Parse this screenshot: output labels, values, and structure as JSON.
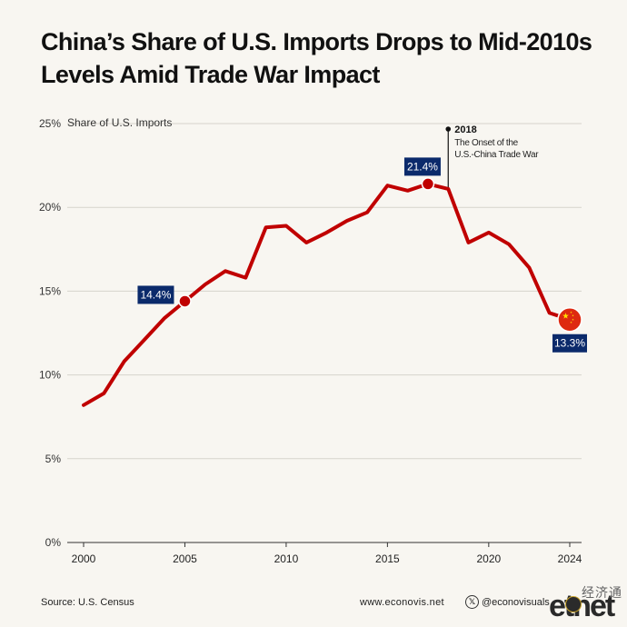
{
  "title": "China’s Share of U.S. Imports Drops to Mid-2010s Levels Amid Trade War Impact",
  "footer": {
    "source": "Source: U.S. Census",
    "website": "www.econovis.net",
    "social": "@econovisuals",
    "social_icon": "x-logo-icon"
  },
  "watermark": {
    "cn": "经济通",
    "en": "etnet"
  },
  "colors": {
    "line": "#c00000",
    "label_bg": "#0b2a6b",
    "flag_red": "#de2910",
    "flag_star": "#ffde00"
  },
  "chart_data": {
    "type": "line",
    "title": "China’s Share of U.S. Imports Drops to Mid-2010s Levels Amid Trade War Impact",
    "ylabel": "Share of U.S. Imports",
    "xlabel": "",
    "ylim": [
      0,
      25
    ],
    "xlim": [
      2000,
      2024
    ],
    "yticks": [
      0,
      5,
      10,
      15,
      20,
      25
    ],
    "ytick_labels": [
      "0%",
      "5%",
      "10%",
      "15%",
      "20%",
      "25%"
    ],
    "xticks": [
      2000,
      2005,
      2010,
      2015,
      2020,
      2024
    ],
    "xtick_labels": [
      "2000",
      "2005",
      "2010",
      "2015",
      "2020",
      "2024"
    ],
    "grid": true,
    "series": [
      {
        "x": [
          2000,
          2001,
          2002,
          2003,
          2004,
          2005,
          2006,
          2007,
          2008,
          2009,
          2010,
          2011,
          2012,
          2013,
          2014,
          2015,
          2016,
          2017,
          2018,
          2019,
          2020,
          2021,
          2022,
          2023,
          2024
        ],
        "values": [
          8.2,
          8.9,
          10.8,
          12.1,
          13.4,
          14.4,
          15.4,
          16.2,
          15.8,
          18.8,
          18.9,
          17.9,
          18.5,
          19.2,
          19.7,
          21.3,
          21.0,
          21.4,
          21.1,
          17.9,
          18.5,
          17.8,
          16.4,
          13.7,
          13.3
        ]
      }
    ],
    "highlights": [
      {
        "x": 2005,
        "y": 14.4,
        "label": "14.4%"
      },
      {
        "x": 2017,
        "y": 21.4,
        "label": "21.4%"
      },
      {
        "x": 2024,
        "y": 13.3,
        "label": "13.3%",
        "marker": "china-flag-icon"
      }
    ],
    "annotation": {
      "x": 2018,
      "year": "2018",
      "text": [
        "The Onset of the",
        "U.S.-China Trade War"
      ]
    }
  }
}
